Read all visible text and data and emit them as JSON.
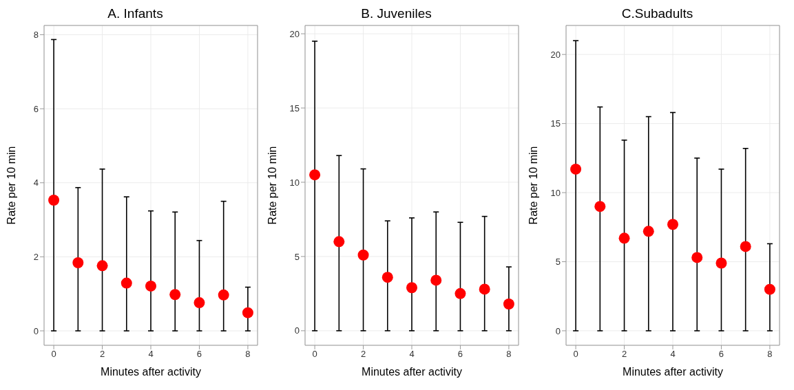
{
  "chart_data": [
    {
      "type": "scatter",
      "title": "A. Infants",
      "xlabel": "Minutes after activity",
      "ylabel": "Rate per 10 min",
      "x": [
        0,
        1,
        2,
        3,
        4,
        5,
        6,
        7,
        8
      ],
      "xlim": [
        -0.4,
        8.4
      ],
      "xticks": [
        0,
        2,
        4,
        6,
        8
      ],
      "ylim": [
        -0.39,
        8.25
      ],
      "yticks": [
        0,
        2,
        4,
        6,
        8
      ],
      "grid": true,
      "marker": "circle",
      "series": [
        {
          "color": "#ff0000",
          "values": [
            3.53,
            1.84,
            1.76,
            1.29,
            1.21,
            0.98,
            0.76,
            0.97,
            0.49
          ],
          "errors": [
            [
              0,
              7.87
            ],
            [
              0,
              3.87
            ],
            [
              0,
              4.37
            ],
            [
              0,
              3.62
            ],
            [
              0,
              3.24
            ],
            [
              0,
              3.21
            ],
            [
              0,
              2.44
            ],
            [
              0,
              3.5
            ],
            [
              0,
              1.18
            ]
          ]
        }
      ]
    },
    {
      "type": "scatter",
      "title": "B. Juveniles",
      "xlabel": "Minutes after activity",
      "ylabel": "Rate per 10 min",
      "x": [
        0,
        1,
        2,
        3,
        4,
        5,
        6,
        7,
        8
      ],
      "xlim": [
        -0.4,
        8.4
      ],
      "xticks": [
        0,
        2,
        4,
        6,
        8
      ],
      "ylim": [
        -0.98,
        20.56
      ],
      "yticks": [
        0,
        5,
        10,
        15,
        20
      ],
      "grid": true,
      "marker": "circle",
      "series": [
        {
          "color": "#ff0000",
          "values": [
            10.5,
            6.0,
            5.1,
            3.6,
            2.9,
            3.4,
            2.5,
            2.8,
            1.8
          ],
          "errors": [
            [
              0,
              19.5
            ],
            [
              0,
              11.8
            ],
            [
              0,
              10.9
            ],
            [
              0,
              7.4
            ],
            [
              0,
              7.6
            ],
            [
              0,
              8.0
            ],
            [
              0,
              7.3
            ],
            [
              0,
              7.7
            ],
            [
              0,
              4.3
            ]
          ]
        }
      ]
    },
    {
      "type": "scatter",
      "title": "C.Subadults",
      "xlabel": "Minutes after activity",
      "ylabel": "Rate per 10 min",
      "x": [
        0,
        1,
        2,
        3,
        4,
        5,
        6,
        7,
        8
      ],
      "xlim": [
        -0.4,
        8.4
      ],
      "xticks": [
        0,
        2,
        4,
        6,
        8
      ],
      "ylim": [
        -1.05,
        22.1
      ],
      "yticks": [
        0,
        5,
        10,
        15,
        20
      ],
      "grid": true,
      "marker": "circle",
      "series": [
        {
          "color": "#ff0000",
          "values": [
            11.7,
            9.0,
            6.7,
            7.2,
            7.7,
            5.3,
            4.9,
            6.1,
            3.0
          ],
          "errors": [
            [
              0,
              21.0
            ],
            [
              0,
              16.2
            ],
            [
              0,
              13.8
            ],
            [
              0,
              15.5
            ],
            [
              0,
              15.8
            ],
            [
              0,
              12.5
            ],
            [
              0,
              11.7
            ],
            [
              0,
              13.2
            ],
            [
              0,
              6.3
            ]
          ]
        }
      ]
    }
  ]
}
